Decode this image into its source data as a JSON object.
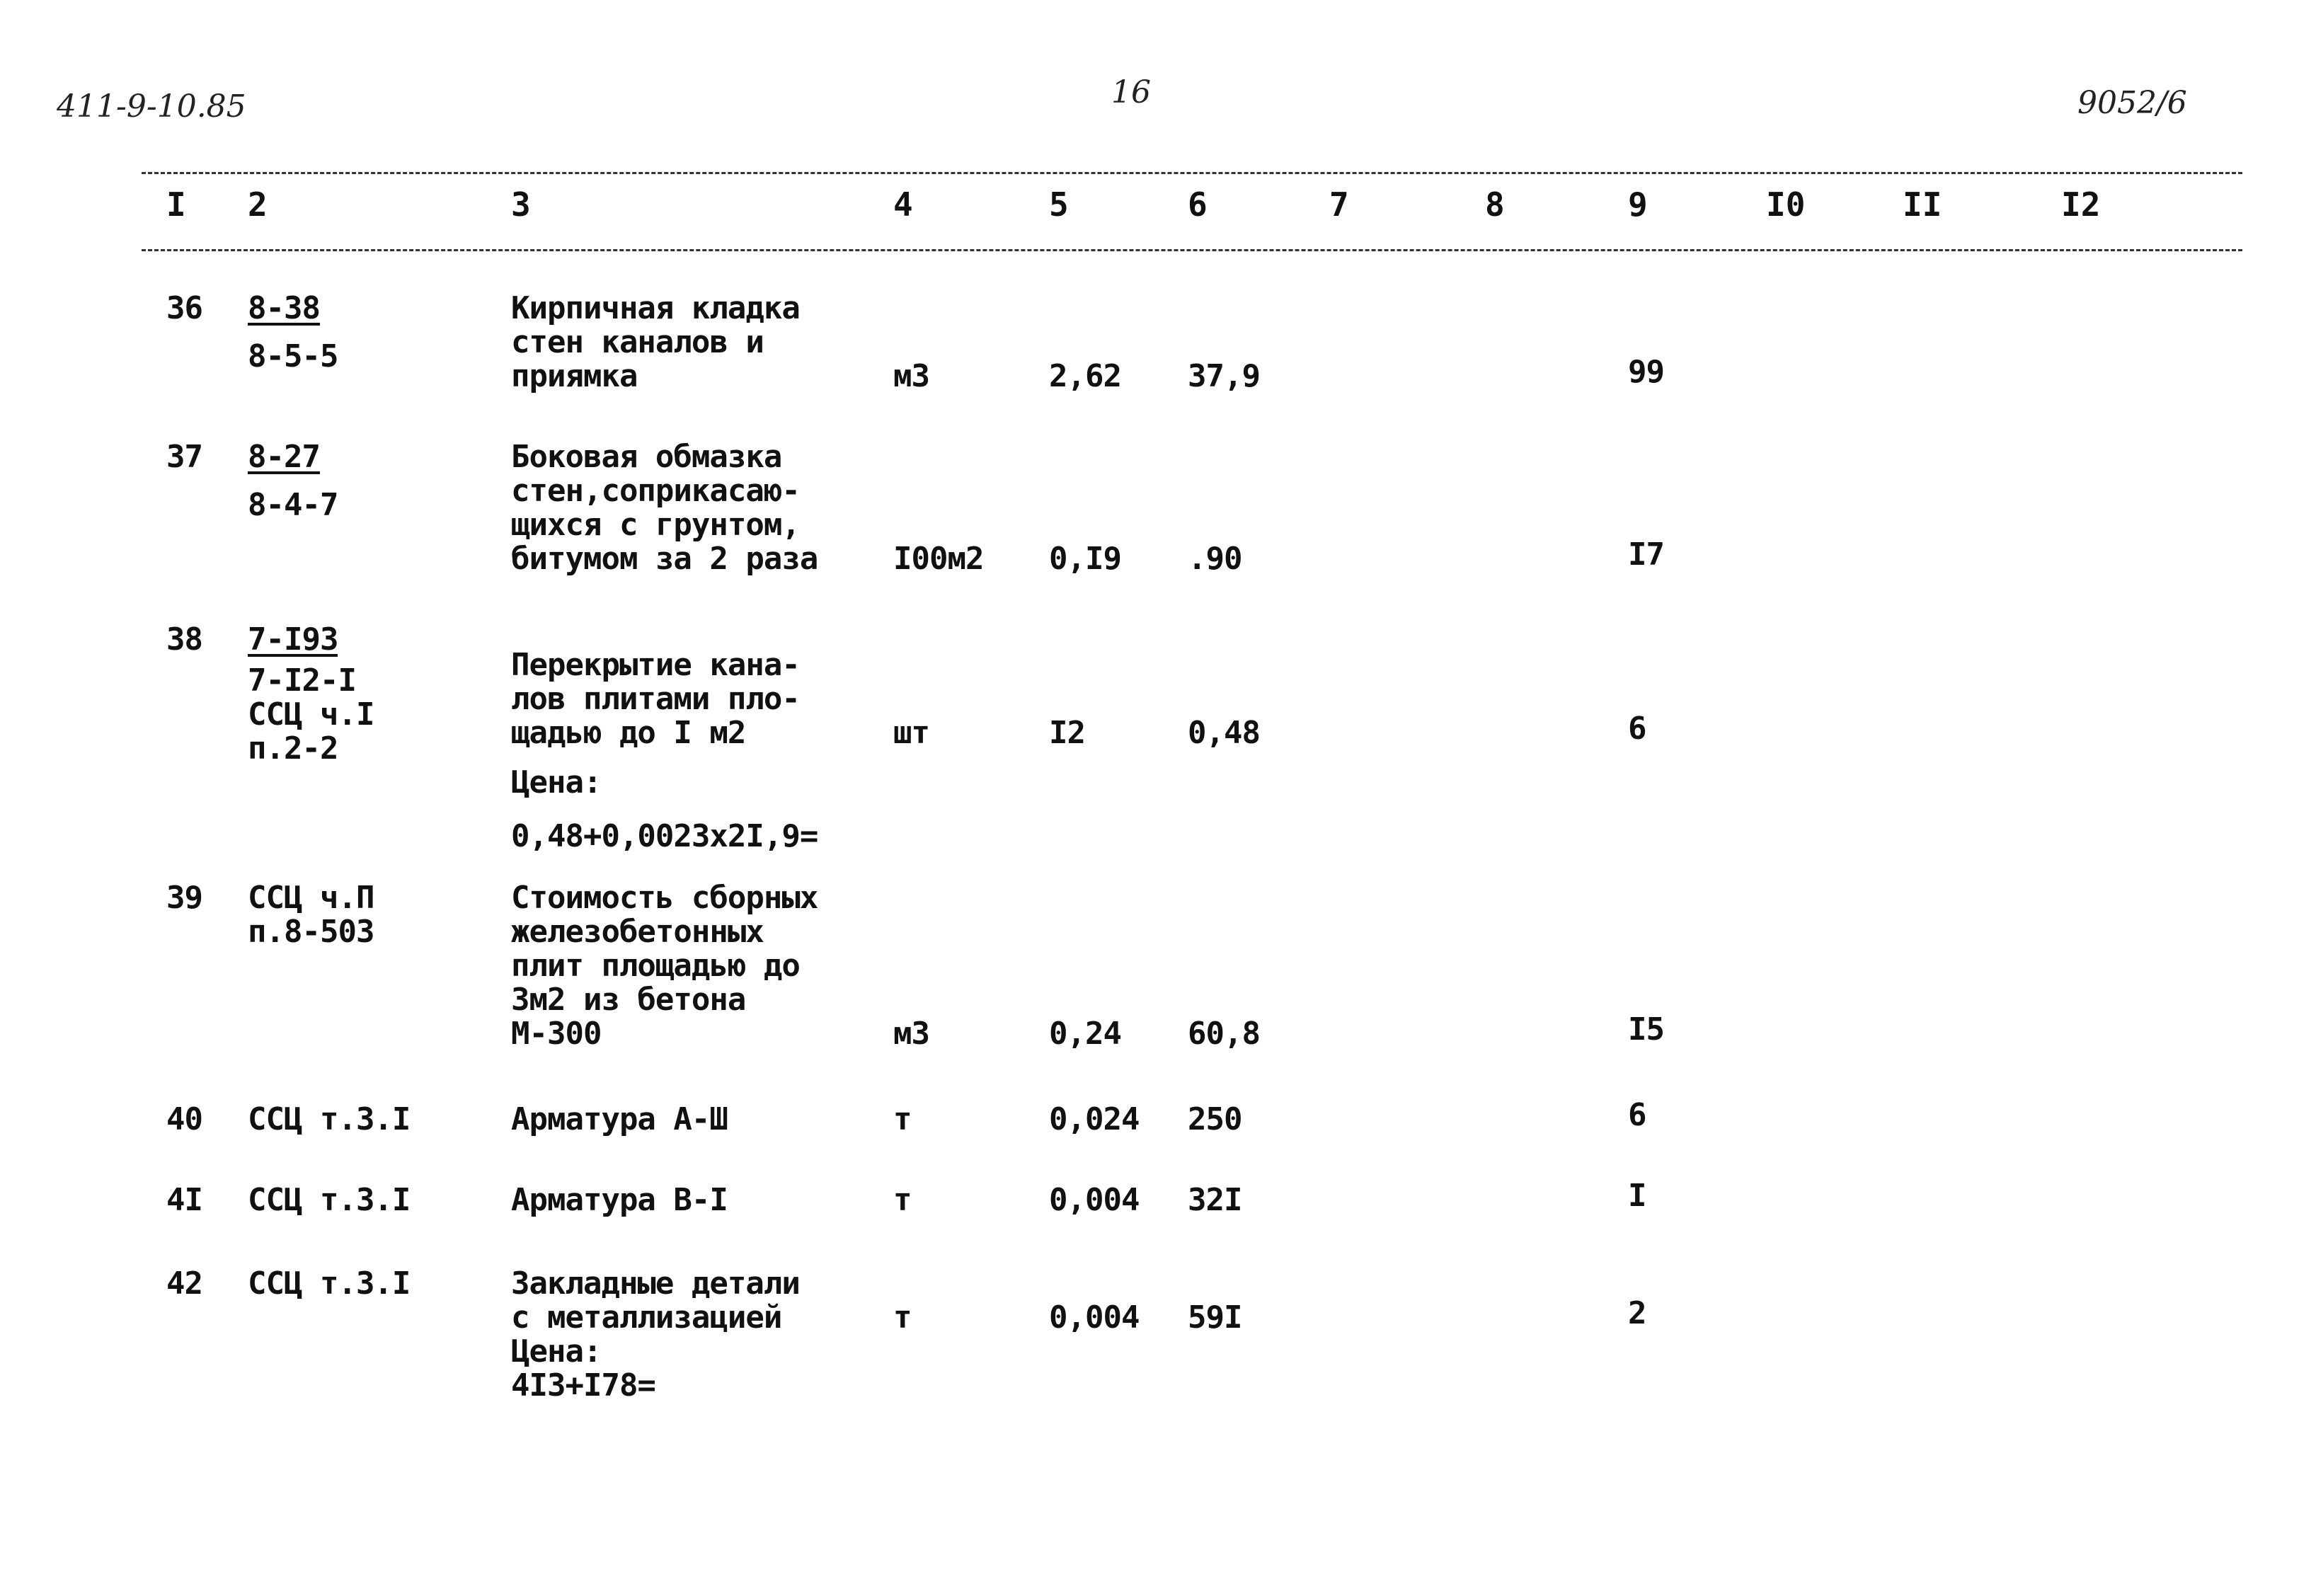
{
  "page": {
    "doc_code": "411-9-10.85",
    "page_number": "16",
    "sheet_ref": "9052/6"
  },
  "table": {
    "columns": [
      "I",
      "2",
      "3",
      "4",
      "5",
      "6",
      "7",
      "8",
      "9",
      "I0",
      "II",
      "I2"
    ],
    "rows": [
      {
        "num": "36",
        "code": [
          "8-38",
          "8-5-5"
        ],
        "desc": [
          "Кирпичная кладка",
          "стен каналов и",
          "приямка"
        ],
        "unit": "м3",
        "c5": "2,62",
        "c6": "37,9",
        "c9": "99"
      },
      {
        "num": "37",
        "code": [
          "8-27",
          "8-4-7"
        ],
        "desc": [
          "Боковая обмазка",
          "стен,соприкасаю-",
          "щихся с грунтом,",
          "битумом за 2 раза"
        ],
        "unit": "I00м2",
        "c5": "0,I9",
        "c6": ".90",
        "c9": "I7"
      },
      {
        "num": "38",
        "code": [
          "7-I93",
          "7-I2-I",
          "ССЦ ч.I",
          "п.2-2"
        ],
        "desc": [
          "Перекрытие кана-",
          "лов плитами пло-",
          "щадью до I м2",
          "Цена:",
          "0,48+0,0023x2I,9="
        ],
        "unit": "шт",
        "c5": "I2",
        "c6": "0,48",
        "c9": "6"
      },
      {
        "num": "39",
        "code": [
          "ССЦ ч.П",
          "п.8-503"
        ],
        "desc": [
          "Стоимость сборных",
          "железобетонных",
          "плит площадью до",
          "3м2 из бетона",
          "М-300"
        ],
        "unit": "м3",
        "c5": "0,24",
        "c6": "60,8",
        "c9": "I5"
      },
      {
        "num": "40",
        "code": [
          "ССЦ т.3.I"
        ],
        "desc": [
          "Арматура А-Ш"
        ],
        "unit": "т",
        "c5": "0,024",
        "c6": "250",
        "c9": "6"
      },
      {
        "num": "4I",
        "code": [
          "ССЦ т.3.I"
        ],
        "desc": [
          "Арматура В-I"
        ],
        "unit": "т",
        "c5": "0,004",
        "c6": "32I",
        "c9": "I"
      },
      {
        "num": "42",
        "code": [
          "ССЦ т.3.I"
        ],
        "desc": [
          "Закладные детали",
          "с металлизацией",
          "Цена:",
          "4I3+I78="
        ],
        "unit": "т",
        "c5": "0,004",
        "c6": "59I",
        "c9": "2"
      }
    ]
  }
}
